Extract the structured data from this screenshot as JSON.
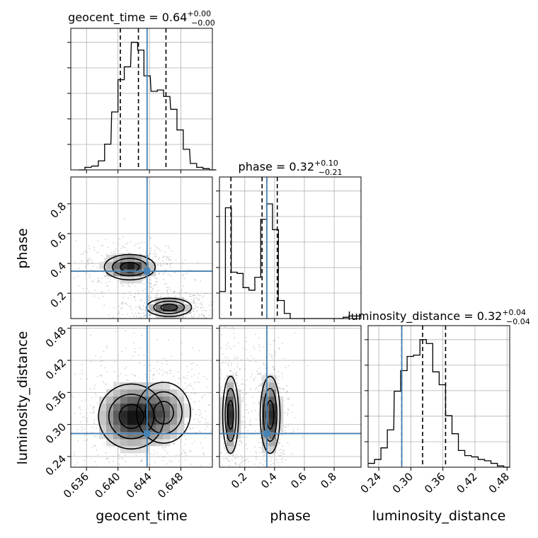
{
  "chart_data": [
    {
      "type": "histogram",
      "panel": "geocent_time marginal",
      "title_param": "geocent_time",
      "title_value": "0.64",
      "title_plus": "+0.00",
      "title_minus": "−0.00",
      "x_range": [
        0.634,
        0.652
      ],
      "bins_x": [
        0.635,
        0.6358,
        0.6367,
        0.6375,
        0.6383,
        0.6392,
        0.64,
        0.6408,
        0.6417,
        0.6425,
        0.6433,
        0.6442,
        0.645,
        0.6458,
        0.6467,
        0.6475,
        0.6483,
        0.6492,
        0.65,
        0.6508,
        0.6517
      ],
      "heights": [
        0.0,
        0.02,
        0.03,
        0.07,
        0.2,
        0.45,
        0.7,
        0.8,
        0.99,
        0.93,
        0.73,
        0.61,
        0.62,
        0.57,
        0.47,
        0.31,
        0.16,
        0.05,
        0.02,
        0.01,
        0.0
      ],
      "quantiles": [
        0.6403,
        0.6426,
        0.6461
      ],
      "truth": 0.6437
    },
    {
      "type": "histogram",
      "panel": "phase marginal",
      "title_param": "phase",
      "title_value": "0.32",
      "title_plus": "+0.10",
      "title_minus": "−0.21",
      "x_range": [
        0.03,
        0.98
      ],
      "bins_x": [
        0.03,
        0.07,
        0.109,
        0.149,
        0.188,
        0.228,
        0.267,
        0.307,
        0.346,
        0.386,
        0.425,
        0.465,
        0.504,
        0.544,
        0.583,
        0.623,
        0.662,
        0.702,
        0.741,
        0.781,
        0.82,
        0.86,
        0.899,
        0.939
      ],
      "heights": [
        0.21,
        0.86,
        0.36,
        0.35,
        0.24,
        0.22,
        0.32,
        0.77,
        0.89,
        0.69,
        0.14,
        0.04,
        0.0,
        0.0,
        0.0,
        0.0,
        0.0,
        0.0,
        0.0,
        0.0,
        0.0,
        0.01,
        0.02,
        0.02
      ],
      "quantiles": [
        0.107,
        0.316,
        0.418
      ],
      "truth": 0.348,
      "ticks": [
        0.2,
        0.4,
        0.6,
        0.8
      ],
      "tick_labels": [
        "0.2",
        "0.4",
        "0.6",
        "0.8"
      ],
      "xlabel": "phase"
    },
    {
      "type": "histogram",
      "panel": "luminosity_distance marginal",
      "title_param": "luminosity_distance",
      "title_value": "0.32",
      "title_plus": "+0.04",
      "title_minus": "−0.04",
      "x_range": [
        0.22,
        0.485
      ],
      "bins_x": [
        0.22,
        0.232,
        0.244,
        0.256,
        0.269,
        0.281,
        0.293,
        0.305,
        0.317,
        0.329,
        0.341,
        0.353,
        0.365,
        0.377,
        0.389,
        0.401,
        0.414,
        0.426,
        0.438,
        0.45,
        0.462,
        0.474
      ],
      "heights": [
        0.03,
        0.06,
        0.15,
        0.29,
        0.59,
        0.75,
        0.86,
        0.87,
        0.99,
        0.96,
        0.74,
        0.64,
        0.4,
        0.26,
        0.13,
        0.09,
        0.08,
        0.06,
        0.05,
        0.03,
        0.01,
        0.0
      ],
      "quantiles": [
        0.283,
        0.322,
        0.365
      ],
      "truth": 0.283,
      "ticks": [
        0.24,
        0.3,
        0.36,
        0.42,
        0.48
      ],
      "tick_labels": [
        "0.24",
        "0.30",
        "0.36",
        "0.42",
        "0.48"
      ],
      "xlabel": "luminosity_distance"
    },
    {
      "type": "density-contour",
      "panel": "phase vs geocent_time",
      "x_range": [
        0.634,
        0.652
      ],
      "y_range": [
        0.03,
        0.98
      ],
      "modes": [
        {
          "x": 0.6415,
          "y": 0.375,
          "sx": 0.0017,
          "sy": 0.045,
          "w": 1.0
        },
        {
          "x": 0.6465,
          "y": 0.105,
          "sx": 0.0015,
          "sy": 0.032,
          "w": 0.85
        }
      ],
      "truth": {
        "x": 0.6437,
        "y": 0.348
      },
      "yticks": [
        0.2,
        0.4,
        0.6,
        0.8
      ],
      "ytick_labels": [
        "0.2",
        "0.4",
        "0.6",
        "0.8"
      ],
      "ylabel": "phase"
    },
    {
      "type": "density-contour",
      "panel": "luminosity_distance vs geocent_time",
      "x_range": [
        0.634,
        0.652
      ],
      "y_range": [
        0.22,
        0.485
      ],
      "modes": [
        {
          "x": 0.6417,
          "y": 0.315,
          "sx": 0.0022,
          "sy": 0.032,
          "w": 1.0
        },
        {
          "x": 0.6458,
          "y": 0.322,
          "sx": 0.0018,
          "sy": 0.03,
          "w": 0.55
        }
      ],
      "truth": {
        "x": 0.6437,
        "y": 0.283
      },
      "xticks": [
        0.636,
        0.64,
        0.644,
        0.648
      ],
      "xtick_labels": [
        "0.636",
        "0.640",
        "0.644",
        "0.648"
      ],
      "yticks": [
        0.24,
        0.3,
        0.36,
        0.42,
        0.48
      ],
      "ytick_labels": [
        "0.24",
        "0.30",
        "0.36",
        "0.42",
        "0.48"
      ],
      "xlabel": "geocent_time",
      "ylabel": "luminosity_distance"
    },
    {
      "type": "density-contour",
      "panel": "luminosity_distance vs phase",
      "x_range": [
        0.03,
        0.98
      ],
      "y_range": [
        0.22,
        0.485
      ],
      "modes": [
        {
          "x": 0.105,
          "y": 0.318,
          "sx": 0.028,
          "sy": 0.038,
          "w": 0.9
        },
        {
          "x": 0.37,
          "y": 0.318,
          "sx": 0.035,
          "sy": 0.038,
          "w": 1.0
        }
      ],
      "truth": {
        "x": 0.348,
        "y": 0.283
      }
    }
  ],
  "colors": {
    "truth": "#4682b4",
    "hist": "#000000",
    "grid": "#b0b0b0",
    "scatter": "#9a9a9a"
  }
}
